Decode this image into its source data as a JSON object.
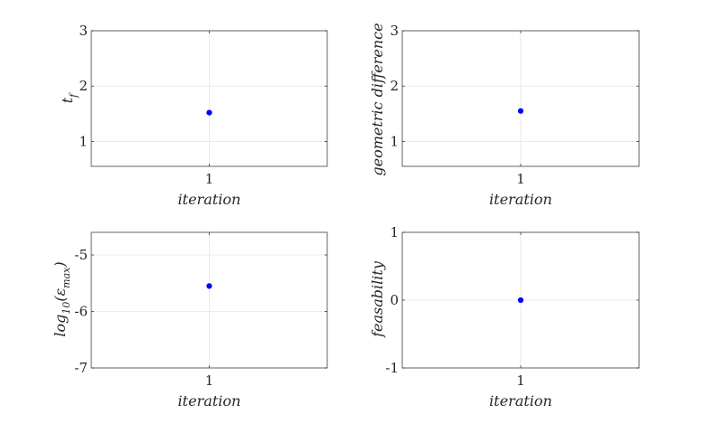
{
  "chart_data": [
    {
      "type": "scatter",
      "xlabel": "iteration",
      "ylabel": "t_f",
      "ylabel_parts": {
        "base": "t",
        "sub": "f"
      },
      "x": [
        1
      ],
      "y": [
        1.52
      ],
      "xlim": [
        0.5,
        1.5
      ],
      "ylim": [
        0.55,
        3
      ],
      "xticks": [
        1
      ],
      "yticks": [
        1,
        2,
        3
      ],
      "grid": true,
      "marker_color": "#0000ff"
    },
    {
      "type": "scatter",
      "xlabel": "iteration",
      "ylabel": "geometric difference",
      "x": [
        1
      ],
      "y": [
        1.55
      ],
      "xlim": [
        0.5,
        1.5
      ],
      "ylim": [
        0.55,
        3
      ],
      "xticks": [
        1
      ],
      "yticks": [
        1,
        2,
        3
      ],
      "grid": true,
      "marker_color": "#0000ff"
    },
    {
      "type": "scatter",
      "xlabel": "iteration",
      "ylabel": "log10(ε_max)",
      "ylabel_parts": {
        "base": "log",
        "sub1": "10",
        "open": "(ε",
        "sub2": "max",
        "close": ")"
      },
      "x": [
        1
      ],
      "y": [
        -5.55
      ],
      "xlim": [
        0.5,
        1.5
      ],
      "ylim": [
        -7,
        -4.6
      ],
      "xticks": [
        1
      ],
      "yticks": [
        -7,
        -6,
        -5
      ],
      "ytick_labels": [
        "-7",
        "-6",
        "-5"
      ],
      "grid": true,
      "marker_color": "#0000ff"
    },
    {
      "type": "scatter",
      "xlabel": "iteration",
      "ylabel": "feasability",
      "x": [
        1
      ],
      "y": [
        0
      ],
      "xlim": [
        0.5,
        1.5
      ],
      "ylim": [
        -1,
        1
      ],
      "xticks": [
        1
      ],
      "yticks": [
        -1,
        0,
        1
      ],
      "ytick_labels": [
        "-1",
        "0",
        "1"
      ],
      "grid": true,
      "marker_color": "#0000ff"
    }
  ]
}
